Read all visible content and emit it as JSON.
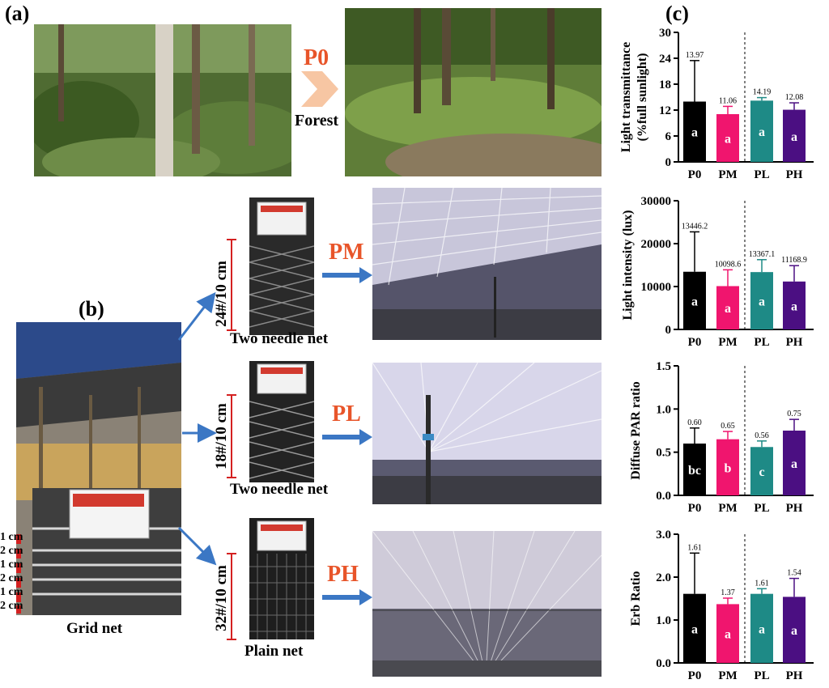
{
  "panels": {
    "a": "(a)",
    "b": "(b)",
    "c": "(c)"
  },
  "forest": {
    "label": "P0",
    "caption": "Forest"
  },
  "treatments": [
    {
      "label": "PM",
      "spec": "24#/10 cm",
      "net": "Two needle net"
    },
    {
      "label": "PL",
      "spec": "18#/10 cm",
      "net": "Two needle net"
    },
    {
      "label": "PH",
      "spec": "32#/10 cm",
      "net": "Plain net"
    }
  ],
  "grid": {
    "caption": "Grid net",
    "cm_labels": [
      "1 cm",
      "2 cm",
      "1 cm",
      "2 cm",
      "1 cm",
      "2 cm"
    ]
  },
  "colors": {
    "P0": "#000000",
    "PM": "#f0156e",
    "PL": "#1e8a86",
    "PH": "#4b0f82",
    "arrow": "#3b77c4",
    "chevron": "#f7c6a3",
    "label_orange": "#e8552a"
  },
  "chart_data": [
    {
      "type": "bar",
      "ylabel": "Light transmittance (%full sunlight)",
      "ylabel_lines": [
        "Light transmittance",
        "(%full sunlight)"
      ],
      "categories": [
        "P0",
        "PM",
        "PL",
        "PH"
      ],
      "values": [
        13.97,
        11.06,
        14.19,
        12.08
      ],
      "errors": [
        9.5,
        1.8,
        0.7,
        1.6
      ],
      "value_labels": [
        "13.97",
        "11.06",
        "14.19",
        "12.08"
      ],
      "letters": [
        "a",
        "a",
        "a",
        "a"
      ],
      "ylim": [
        0,
        30
      ],
      "yticks": [
        "0",
        "6",
        "12",
        "18",
        "24",
        "30"
      ]
    },
    {
      "type": "bar",
      "ylabel": "Light intensity (lux)",
      "ylabel_lines": [
        "Light intensity (lux)"
      ],
      "categories": [
        "P0",
        "PM",
        "PL",
        "PH"
      ],
      "values": [
        13446.2,
        10098.6,
        13367.1,
        11168.9
      ],
      "errors": [
        9300,
        3800,
        2900,
        3700
      ],
      "value_labels": [
        "13446.2",
        "10098.6",
        "13367.1",
        "11168.9"
      ],
      "letters": [
        "a",
        "a",
        "a",
        "a"
      ],
      "ylim": [
        0,
        30000
      ],
      "yticks": [
        "0",
        "10000",
        "20000",
        "30000"
      ]
    },
    {
      "type": "bar",
      "ylabel": "Diffuse PAR ratio",
      "ylabel_lines": [
        "Diffuse PAR ratio"
      ],
      "categories": [
        "P0",
        "PM",
        "PL",
        "PH"
      ],
      "values": [
        0.6,
        0.65,
        0.56,
        0.75
      ],
      "errors": [
        0.18,
        0.09,
        0.07,
        0.13
      ],
      "value_labels": [
        "0.60",
        "0.65",
        "0.56",
        "0.75"
      ],
      "letters": [
        "bc",
        "b",
        "c",
        "a"
      ],
      "ylim": [
        0,
        1.5
      ],
      "yticks": [
        "0.0",
        "0.5",
        "1.0",
        "1.5"
      ]
    },
    {
      "type": "bar",
      "ylabel": "Erb Ratio",
      "ylabel_lines": [
        "Erb Ratio"
      ],
      "categories": [
        "P0",
        "PM",
        "PL",
        "PH"
      ],
      "values": [
        1.61,
        1.37,
        1.61,
        1.54
      ],
      "errors": [
        0.95,
        0.14,
        0.12,
        0.43
      ],
      "value_labels": [
        "1.61",
        "1.37",
        "1.61",
        "1.54"
      ],
      "letters": [
        "a",
        "a",
        "a",
        "a"
      ],
      "ylim": [
        0,
        3.0
      ],
      "yticks": [
        "0.0",
        "1.0",
        "2.0",
        "3.0"
      ]
    }
  ]
}
